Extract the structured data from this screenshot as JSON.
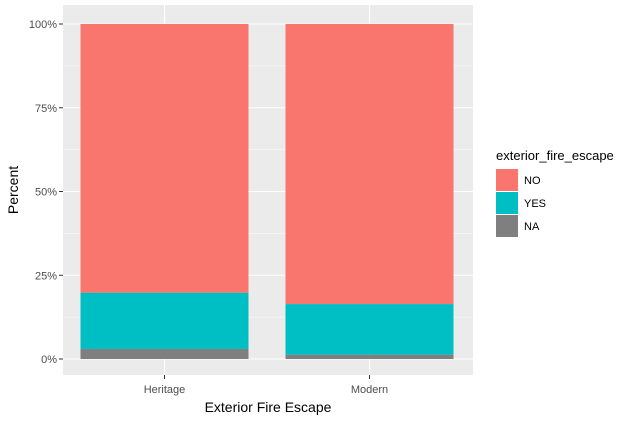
{
  "chart_data": {
    "type": "bar",
    "stacked": "percent",
    "categories": [
      "Heritage",
      "Modern"
    ],
    "series": [
      {
        "name": "NO",
        "values": [
          80.2,
          83.6
        ],
        "color": "#F8766D"
      },
      {
        "name": "YES",
        "values": [
          16.8,
          15.1
        ],
        "color": "#00BFC4"
      },
      {
        "name": "NA",
        "values": [
          3.0,
          1.3
        ],
        "color": "#7F7F7F"
      }
    ],
    "xlabel": "Exterior Fire Escape",
    "ylabel": "Percent",
    "yticks": [
      "0%",
      "25%",
      "50%",
      "75%",
      "100%"
    ],
    "ylim": [
      0,
      100
    ],
    "legend_title": "exterior_fire_escape",
    "legend_position": "right",
    "grid": true,
    "panel_background": "#EBEBEB",
    "grid_color": "#FFFFFF"
  }
}
